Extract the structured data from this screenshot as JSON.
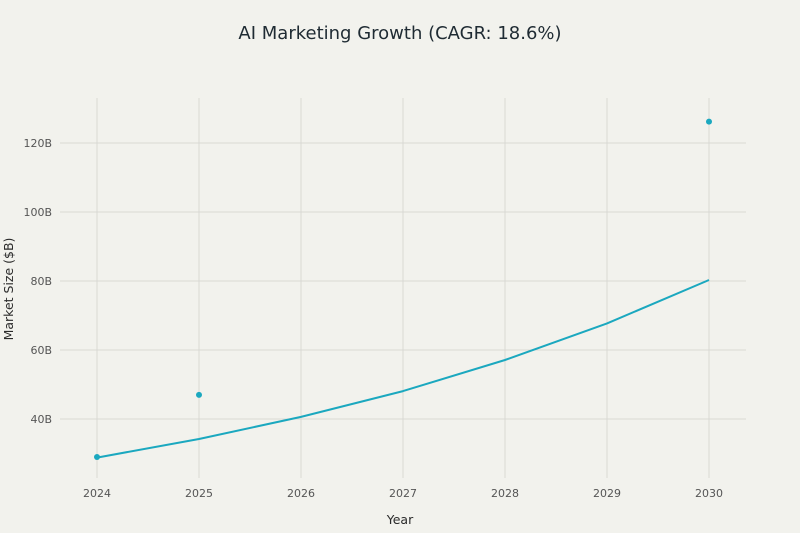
{
  "chart_data": {
    "type": "line",
    "title": "AI Marketing Growth (CAGR: 18.6%)",
    "xlabel": "Year",
    "ylabel": "Market Size ($B)",
    "x": [
      2024,
      2025,
      2026,
      2027,
      2028,
      2029,
      2030
    ],
    "x_tick_labels": [
      "2024",
      "2025",
      "2026",
      "2027",
      "2028",
      "2029",
      "2030"
    ],
    "y_ticks": [
      40,
      60,
      80,
      100,
      120
    ],
    "y_tick_labels": [
      "40B",
      "60B",
      "80B",
      "100B",
      "120B"
    ],
    "ylim": [
      23,
      132
    ],
    "grid": true,
    "series": [
      {
        "type": "line",
        "color": "#1ba8bf",
        "values": [
          28.8,
          34.2,
          40.6,
          48.1,
          57.1,
          67.7,
          80.3
        ]
      },
      {
        "type": "scatter",
        "color": "#1ba8bf",
        "x": [
          2024,
          2025,
          2030
        ],
        "values": [
          29.0,
          47.0,
          126.2
        ]
      }
    ]
  }
}
